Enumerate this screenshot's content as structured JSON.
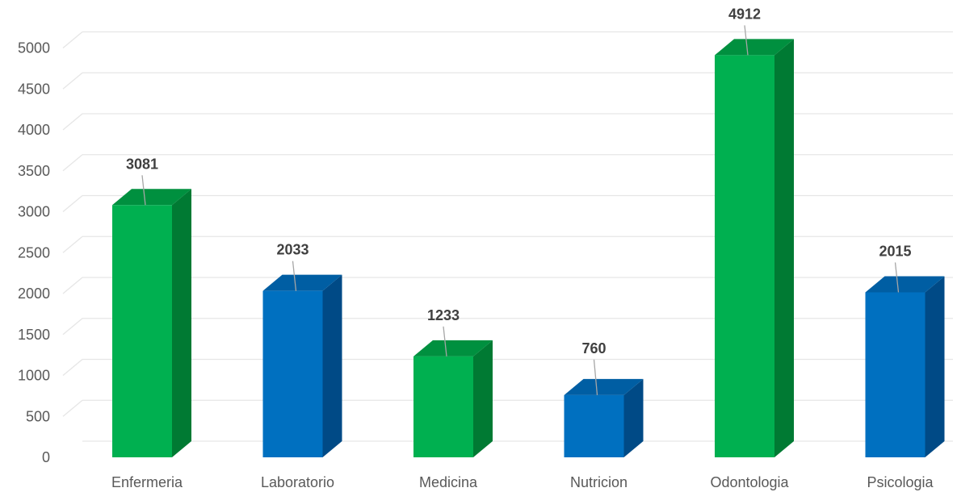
{
  "chart_data": {
    "type": "bar",
    "style": "3d-column",
    "categories": [
      "Enfermeria",
      "Laboratorio",
      "Medicina",
      "Nutricion",
      "Odontologia",
      "Psicologia"
    ],
    "values": [
      3081,
      2033,
      1233,
      760,
      4912,
      2015
    ],
    "value_labels": [
      "3081",
      "2033",
      "1233",
      "760",
      "4912",
      "2015"
    ],
    "bar_colors": [
      "green",
      "blue",
      "green",
      "blue",
      "green",
      "blue"
    ],
    "palette": {
      "green": {
        "front": "#00b050",
        "side": "#007a33",
        "top": "#00903f"
      },
      "blue": {
        "front": "#0070c0",
        "side": "#004a86",
        "top": "#005ea3"
      }
    },
    "ylim": [
      0,
      5000
    ],
    "yticks": [
      0,
      500,
      1000,
      1500,
      2000,
      2500,
      3000,
      3500,
      4000,
      4500,
      5000
    ],
    "ytick_labels": [
      "0",
      "500",
      "1000",
      "1500",
      "2000",
      "2500",
      "3000",
      "3500",
      "4000",
      "4500",
      "5000"
    ],
    "grid": true,
    "legend": "none",
    "title": "",
    "xlabel": "",
    "ylabel": ""
  }
}
